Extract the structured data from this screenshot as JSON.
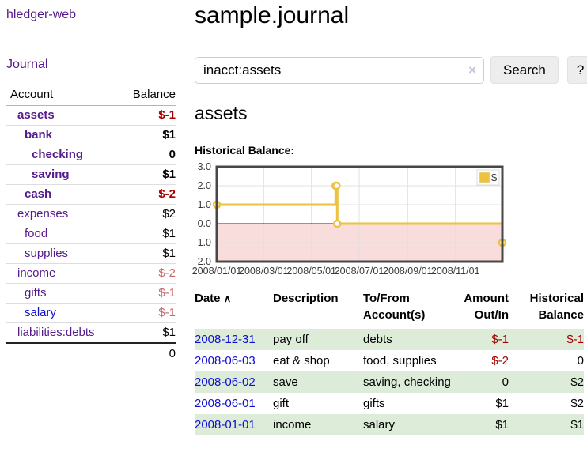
{
  "colors": {
    "link_purple": "#551a8b",
    "link_blue": "#0f0fd0",
    "negative_strong": "#a40000",
    "negative_muted": "#c36b6b",
    "row_shade_green": "#dcecd8",
    "chart_series_gold": "#edc240",
    "chart_negative_region": "#f9dcdc",
    "chart_zero_line": "#8b0000",
    "button_bg": "#ededed"
  },
  "sidebar": {
    "app_title": "hledger-web",
    "journal_link": "Journal",
    "accounts": {
      "col_account": "Account",
      "col_balance": "Balance",
      "rows": [
        {
          "account": "assets",
          "indent": 0,
          "bold": true,
          "balance": "$-1",
          "balance_style": "neg-strong",
          "link_color": "purple"
        },
        {
          "account": "bank",
          "indent": 1,
          "bold": true,
          "balance": "$1",
          "balance_style": "normal",
          "link_color": "purple"
        },
        {
          "account": "checking",
          "indent": 2,
          "bold": true,
          "balance": "0",
          "balance_style": "normal",
          "link_color": "purple"
        },
        {
          "account": "saving",
          "indent": 2,
          "bold": true,
          "balance": "$1",
          "balance_style": "normal",
          "link_color": "purple"
        },
        {
          "account": "cash",
          "indent": 1,
          "bold": true,
          "balance": "$-2",
          "balance_style": "neg-strong",
          "link_color": "purple"
        },
        {
          "account": "expenses",
          "indent": 0,
          "bold": false,
          "balance": "$2",
          "balance_style": "normal",
          "link_color": "purple"
        },
        {
          "account": "food",
          "indent": 1,
          "bold": false,
          "balance": "$1",
          "balance_style": "normal",
          "link_color": "purple"
        },
        {
          "account": "supplies",
          "indent": 1,
          "bold": false,
          "balance": "$1",
          "balance_style": "normal",
          "link_color": "purple"
        },
        {
          "account": "income",
          "indent": 0,
          "bold": false,
          "balance": "$-2",
          "balance_style": "neg-muted",
          "link_color": "purple"
        },
        {
          "account": "gifts",
          "indent": 1,
          "bold": false,
          "balance": "$-1",
          "balance_style": "neg-muted",
          "link_color": "purple"
        },
        {
          "account": "salary",
          "indent": 1,
          "bold": false,
          "balance": "$-1",
          "balance_style": "neg-muted",
          "link_color": "blue"
        },
        {
          "account": "liabilities:debts",
          "indent": 0,
          "bold": false,
          "balance": "$1",
          "balance_style": "normal",
          "link_color": "purple"
        }
      ],
      "total": "0"
    }
  },
  "main": {
    "title": "sample.journal",
    "search": {
      "value": "inacct:assets",
      "clear_icon": "×",
      "search_label": "Search",
      "help_label": "?"
    },
    "account_heading": "assets",
    "chart_title": "Historical Balance:",
    "register": {
      "headers": {
        "date": "Date",
        "sort_icon": "∧",
        "description": "Description",
        "accounts": "To/From Account(s)",
        "amount": "Amount Out/In",
        "balance": "Historical Balance"
      },
      "rows": [
        {
          "date": "2008-12-31",
          "description": "pay off",
          "accounts": "debts",
          "amount": "$-1",
          "amount_neg": true,
          "balance": "$-1",
          "balance_neg": true,
          "shade": true
        },
        {
          "date": "2008-06-03",
          "description": "eat & shop",
          "accounts": "food, supplies",
          "amount": "$-2",
          "amount_neg": true,
          "balance": "0",
          "balance_neg": false,
          "shade": false
        },
        {
          "date": "2008-06-02",
          "description": "save",
          "accounts": "saving, checking",
          "amount": "0",
          "amount_neg": false,
          "balance": "$2",
          "balance_neg": false,
          "shade": true
        },
        {
          "date": "2008-06-01",
          "description": "gift",
          "accounts": "gifts",
          "amount": "$1",
          "amount_neg": false,
          "balance": "$2",
          "balance_neg": false,
          "shade": false
        },
        {
          "date": "2008-01-01",
          "description": "income",
          "accounts": "salary",
          "amount": "$1",
          "amount_neg": false,
          "balance": "$1",
          "balance_neg": false,
          "shade": true
        }
      ]
    }
  },
  "chart_data": {
    "type": "line",
    "style": "step",
    "title": "Historical Balance:",
    "xlabel": "",
    "ylabel": "",
    "series": [
      {
        "name": "$",
        "color": "#edc240",
        "points": [
          [
            "2008-01-01",
            1
          ],
          [
            "2008-06-01",
            2
          ],
          [
            "2008-06-02",
            2
          ],
          [
            "2008-06-03",
            0
          ],
          [
            "2008-12-31",
            -1
          ]
        ]
      }
    ],
    "xlim": [
      "2008-01-01",
      "2008-12-31"
    ],
    "ylim": [
      -2,
      3
    ],
    "x_ticks": [
      "2008/01/01",
      "2008/03/01",
      "2008/05/01",
      "2008/07/01",
      "2008/09/01",
      "2008/11/01"
    ],
    "y_ticks": [
      "3.0",
      "2.0",
      "1.0",
      "0.0",
      "-1.0",
      "-2.0"
    ],
    "grid": true,
    "legend_position": "top-right",
    "negative_region_color": "#f9dcdc",
    "zero_line_color": "#8b0000"
  }
}
